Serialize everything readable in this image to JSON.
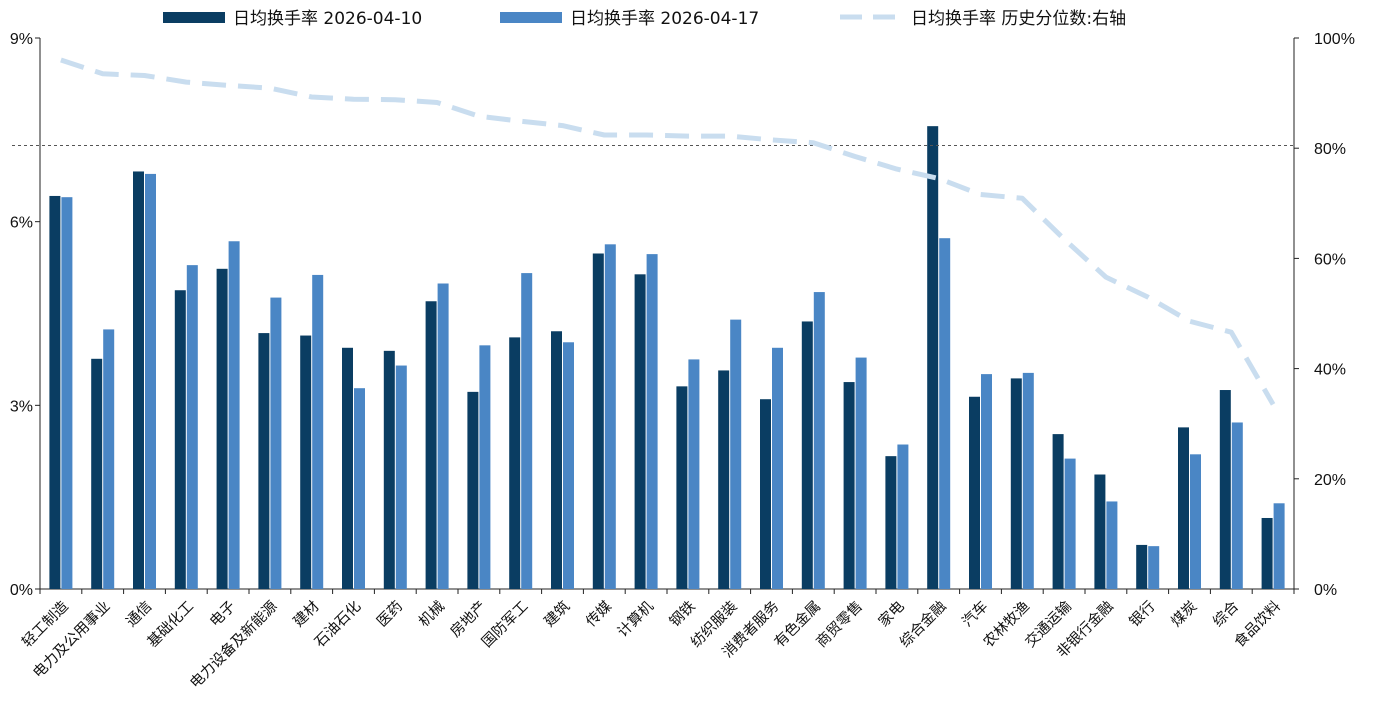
{
  "chart_data": {
    "type": "bar",
    "legend": {
      "series_a": "日均换手率 2026-04-10",
      "series_b": "日均换手率 2026-04-17",
      "line": "日均换手率 历史分位数:右轴"
    },
    "categories": [
      "轻工制造",
      "电力及公用事业",
      "通信",
      "基础化工",
      "电子",
      "电力设备及新能源",
      "建材",
      "石油石化",
      "医药",
      "机械",
      "房地产",
      "国防军工",
      "建筑",
      "传媒",
      "计算机",
      "钢铁",
      "纺织服装",
      "消费者服务",
      "有色金属",
      "商贸零售",
      "家电",
      "综合金融",
      "汽车",
      "农林牧渔",
      "交通运输",
      "非银行金融",
      "银行",
      "煤炭",
      "综合",
      "食品饮料"
    ],
    "series": [
      {
        "name": "日均换手率 2026-04-10",
        "color": "#0a3d62",
        "values": [
          6.42,
          3.76,
          6.82,
          4.88,
          5.23,
          4.18,
          4.14,
          3.94,
          3.89,
          4.7,
          3.22,
          4.11,
          4.21,
          5.48,
          5.14,
          3.31,
          3.57,
          3.1,
          4.37,
          3.38,
          2.17,
          7.56,
          3.14,
          3.44,
          2.53,
          1.87,
          0.72,
          2.64,
          3.25,
          1.16
        ]
      },
      {
        "name": "日均换手率 2026-04-17",
        "color": "#4a86c5",
        "values": [
          6.4,
          4.24,
          6.78,
          5.29,
          5.68,
          4.76,
          5.13,
          3.28,
          3.65,
          4.99,
          3.98,
          5.16,
          4.03,
          5.63,
          5.47,
          3.75,
          4.4,
          3.94,
          4.85,
          3.78,
          2.36,
          5.73,
          3.51,
          3.53,
          2.13,
          1.43,
          0.7,
          2.2,
          2.72,
          1.4
        ]
      },
      {
        "name": "日均换手率 历史分位数:右轴",
        "axis": "right",
        "color": "#c9ddef",
        "style": "dashed",
        "values": [
          96.0,
          93.5,
          93.2,
          92.0,
          91.4,
          90.9,
          89.3,
          88.9,
          88.8,
          88.3,
          85.8,
          84.9,
          84.1,
          82.4,
          82.4,
          82.2,
          82.2,
          81.5,
          81.0,
          78.5,
          76.2,
          74.5,
          71.6,
          70.9,
          63.5,
          56.6,
          53.0,
          48.6,
          46.6,
          33.5
        ]
      }
    ],
    "y_left": {
      "ticks": [
        "0%",
        "3%",
        "6%",
        "9%"
      ],
      "range": [
        0,
        9
      ]
    },
    "y_right": {
      "ticks": [
        "0%",
        "20%",
        "40%",
        "60%",
        "80%",
        "100%"
      ],
      "range": [
        0,
        100
      ]
    },
    "reference_line": {
      "axis": "right",
      "value": 80.5,
      "style": "dotted"
    },
    "grid": false,
    "legend_position": "top"
  }
}
